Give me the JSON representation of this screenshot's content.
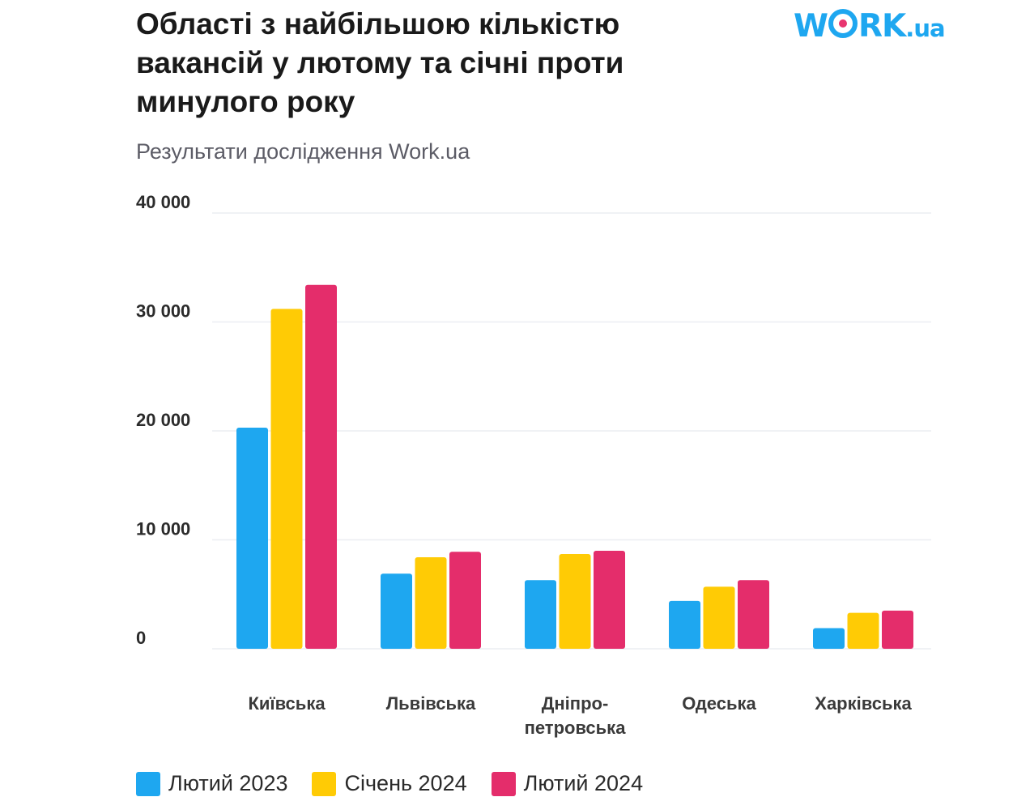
{
  "logo": {
    "work": "W",
    "rk": "RK",
    "ua": ".ua"
  },
  "chart_data": {
    "type": "bar",
    "title": "Області з найбільшою кількістю\nвакансій у лютому та січні проти\nминулого року",
    "subtitle": "Результати дослідження Work.ua",
    "categories": [
      "Київська",
      "Львівська",
      "Дніпро-\nпетровська",
      "Одеська",
      "Харківська"
    ],
    "series": [
      {
        "name": "Лютий 2023",
        "color": "#1ea7f0",
        "values": [
          20300,
          6900,
          6300,
          4400,
          1900
        ]
      },
      {
        "name": "Січень 2024",
        "color": "#ffcb05",
        "values": [
          31200,
          8400,
          8700,
          5700,
          3300
        ]
      },
      {
        "name": "Лютий 2024",
        "color": "#e42d6b",
        "values": [
          33400,
          8900,
          9000,
          6300,
          3500
        ]
      }
    ],
    "yticks": [
      "0",
      "10 000",
      "20 000",
      "30 000",
      "40 000"
    ],
    "ylim": [
      0,
      40000
    ],
    "grid": true,
    "legend": "bottom-left"
  }
}
